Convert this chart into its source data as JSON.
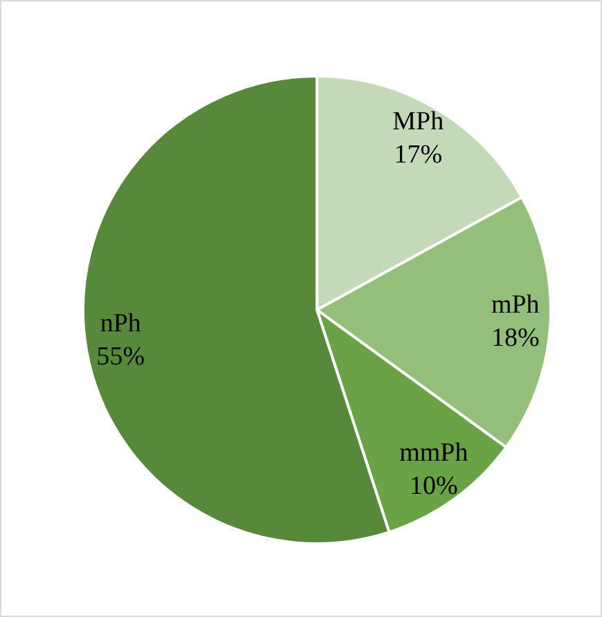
{
  "chart_data": {
    "type": "pie",
    "categories": [
      "MPh",
      "mPh",
      "mmPh",
      "nPh"
    ],
    "values": [
      17,
      18,
      10,
      55
    ],
    "value_labels": [
      "17%",
      "18%",
      "10%",
      "55%"
    ],
    "colors": [
      "#c3d9b8",
      "#93bf7a",
      "#6aa345",
      "#568a3a"
    ],
    "legend": false
  }
}
